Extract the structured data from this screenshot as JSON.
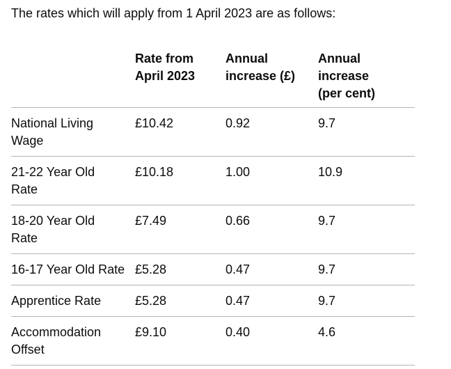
{
  "intro": "The rates which will apply from 1 April 2023 are as follows:",
  "table": {
    "headers": [
      "",
      "Rate from April 2023",
      "Annual increase (£)",
      "Annual increase (per cent)"
    ],
    "header_lines": [
      [
        "",
        ""
      ],
      [
        "Rate from",
        "April 2023"
      ],
      [
        "Annual",
        "increase (£)"
      ],
      [
        "Annual increase",
        "(per cent)"
      ]
    ],
    "rows": [
      {
        "label": "National Living Wage",
        "label_lines": [
          "National Living",
          "Wage"
        ],
        "rate": "£10.42",
        "increase": "0.92",
        "percent": "9.7"
      },
      {
        "label": "21-22 Year Old Rate",
        "label_lines": [
          "21-22 Year Old",
          "Rate"
        ],
        "rate": "£10.18",
        "increase": "1.00",
        "percent": "10.9"
      },
      {
        "label": "18-20 Year Old Rate",
        "label_lines": [
          "18-20 Year Old",
          "Rate"
        ],
        "rate": "£7.49",
        "increase": "0.66",
        "percent": "9.7"
      },
      {
        "label": "16-17 Year Old Rate",
        "label_lines": [
          "16-17 Year Old Rate"
        ],
        "rate": "£5.28",
        "increase": "0.47",
        "percent": "9.7"
      },
      {
        "label": "Apprentice Rate",
        "label_lines": [
          "Apprentice Rate"
        ],
        "rate": "£5.28",
        "increase": "0.47",
        "percent": "9.7"
      },
      {
        "label": "Accommodation Offset",
        "label_lines": [
          "Accommodation",
          "Offset"
        ],
        "rate": "£9.10",
        "increase": "0.40",
        "percent": "4.6"
      }
    ]
  }
}
